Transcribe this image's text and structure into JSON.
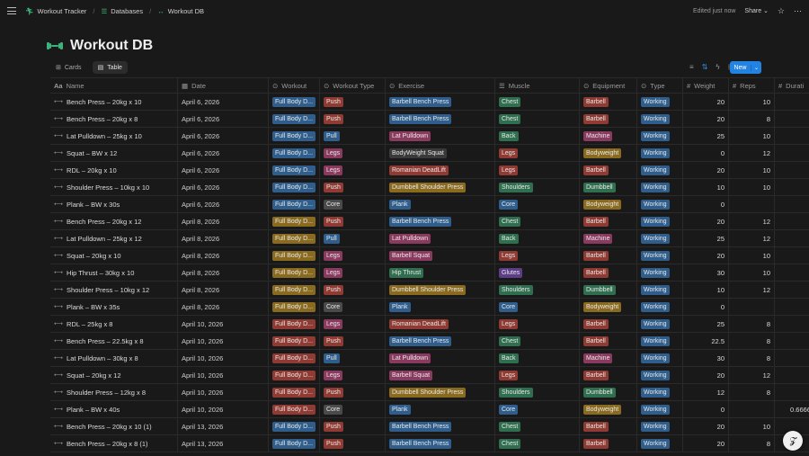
{
  "breadcrumb": [
    "Workout Tracker",
    "Databases",
    "Workout DB"
  ],
  "topbar": {
    "status": "Edited just now",
    "share": "Share"
  },
  "title": "Workout DB",
  "views": [
    "Cards",
    "Table"
  ],
  "new_button": "New",
  "columns": [
    "Name",
    "Date",
    "Workout",
    "Workout Type",
    "Exercise",
    "Muscle",
    "Equipment",
    "Type",
    "Weight",
    "Reps",
    "Durati"
  ],
  "colors": {
    "Full Body D...": "#2f5e8c",
    "Full Body D...b": "#8a6a1f",
    "Full Body D...r": "#8f3a32",
    "Push": "#8f3a32",
    "Pull": "#2f5e8c",
    "Legs": "#8a3a5e",
    "Core": "#4a4a4a",
    "Chest": "#2f6e4e",
    "Back": "#2f6e4e",
    "Shoulders": "#2f6e4e",
    "Glutes": "#5c3d87",
    "Barbell": "#8f3a32",
    "Machine": "#8a3a5e",
    "Bodyweight": "#8a6a1f",
    "Dumbbell": "#2f6e4e",
    "Working": "#2f5e8c"
  },
  "rows": [
    {
      "name": "Bench Press – 20kg x 10",
      "date": "April 6, 2026",
      "workout": "Full Body D...",
      "wcolor": "#2f5e8c",
      "wtype": "Push",
      "exercise": "Barbell Bench Press",
      "ecolor": "#2f5e8c",
      "muscle": "Chest",
      "equipment": "Barbell",
      "type": "Working",
      "weight": "20",
      "reps": "10",
      "dur": ""
    },
    {
      "name": "Bench Press – 20kg x 8",
      "date": "April 6, 2026",
      "workout": "Full Body D...",
      "wcolor": "#2f5e8c",
      "wtype": "Push",
      "exercise": "Barbell Bench Press",
      "ecolor": "#2f5e8c",
      "muscle": "Chest",
      "equipment": "Barbell",
      "type": "Working",
      "weight": "20",
      "reps": "8",
      "dur": ""
    },
    {
      "name": "Lat Pulldown – 25kg x 10",
      "date": "April 6, 2026",
      "workout": "Full Body D...",
      "wcolor": "#2f5e8c",
      "wtype": "Pull",
      "exercise": "Lat Pulldown",
      "ecolor": "#8a3a5e",
      "muscle": "Back",
      "equipment": "Machine",
      "type": "Working",
      "weight": "25",
      "reps": "10",
      "dur": ""
    },
    {
      "name": "Squat – BW x 12",
      "date": "April 6, 2026",
      "workout": "Full Body D...",
      "wcolor": "#2f5e8c",
      "wtype": "Legs",
      "exercise": "BodyWeight Squat",
      "ecolor": "#3a3a3a",
      "muscle": "Legs",
      "equipment": "Bodyweight",
      "type": "Working",
      "weight": "0",
      "reps": "12",
      "dur": ""
    },
    {
      "name": "RDL – 20kg x 10",
      "date": "April 6, 2026",
      "workout": "Full Body D...",
      "wcolor": "#2f5e8c",
      "wtype": "Legs",
      "exercise": "Romanian DeadLift",
      "ecolor": "#8f3a32",
      "muscle": "Legs",
      "equipment": "Barbell",
      "type": "Working",
      "weight": "20",
      "reps": "10",
      "dur": ""
    },
    {
      "name": "Shoulder Press – 10kg x 10",
      "date": "April 6, 2026",
      "workout": "Full Body D...",
      "wcolor": "#2f5e8c",
      "wtype": "Push",
      "exercise": "Dumbbell Shoulder Press",
      "ecolor": "#8a6a1f",
      "muscle": "Shoulders",
      "equipment": "Dumbbell",
      "type": "Working",
      "weight": "10",
      "reps": "10",
      "dur": ""
    },
    {
      "name": "Plank – BW x 30s",
      "date": "April 6, 2026",
      "workout": "Full Body D...",
      "wcolor": "#2f5e8c",
      "wtype": "Core",
      "exercise": "Plank",
      "ecolor": "#2f5e8c",
      "muscle": "Core",
      "equipment": "Bodyweight",
      "type": "Working",
      "weight": "0",
      "reps": "",
      "dur": ""
    },
    {
      "name": "Bench Press – 20kg x 12",
      "date": "April 8, 2026",
      "workout": "Full Body D...",
      "wcolor": "#8a6a1f",
      "wtype": "Push",
      "exercise": "Barbell Bench Press",
      "ecolor": "#2f5e8c",
      "muscle": "Chest",
      "equipment": "Barbell",
      "type": "Working",
      "weight": "20",
      "reps": "12",
      "dur": ""
    },
    {
      "name": "Lat Pulldown – 25kg x 12",
      "date": "April 8, 2026",
      "workout": "Full Body D...",
      "wcolor": "#8a6a1f",
      "wtype": "Pull",
      "exercise": "Lat Pulldown",
      "ecolor": "#8a3a5e",
      "muscle": "Back",
      "equipment": "Machine",
      "type": "Working",
      "weight": "25",
      "reps": "12",
      "dur": ""
    },
    {
      "name": "Squat – 20kg x 10",
      "date": "April 8, 2026",
      "workout": "Full Body D...",
      "wcolor": "#8a6a1f",
      "wtype": "Legs",
      "exercise": "Barbell Squat",
      "ecolor": "#8a3a5e",
      "muscle": "Legs",
      "equipment": "Barbell",
      "type": "Working",
      "weight": "20",
      "reps": "10",
      "dur": ""
    },
    {
      "name": "Hip Thrust – 30kg x 10",
      "date": "April 8, 2026",
      "workout": "Full Body D...",
      "wcolor": "#8a6a1f",
      "wtype": "Legs",
      "exercise": "Hip Thrust",
      "ecolor": "#2f6e4e",
      "muscle": "Glutes",
      "equipment": "Barbell",
      "type": "Working",
      "weight": "30",
      "reps": "10",
      "dur": ""
    },
    {
      "name": "Shoulder Press – 10kg x 12",
      "date": "April 8, 2026",
      "workout": "Full Body D...",
      "wcolor": "#8a6a1f",
      "wtype": "Push",
      "exercise": "Dumbbell Shoulder Press",
      "ecolor": "#8a6a1f",
      "muscle": "Shoulders",
      "equipment": "Dumbbell",
      "type": "Working",
      "weight": "10",
      "reps": "12",
      "dur": ""
    },
    {
      "name": "Plank – BW x 35s",
      "date": "April 8, 2026",
      "workout": "Full Body D...",
      "wcolor": "#8a6a1f",
      "wtype": "Core",
      "exercise": "Plank",
      "ecolor": "#2f5e8c",
      "muscle": "Core",
      "equipment": "Bodyweight",
      "type": "Working",
      "weight": "0",
      "reps": "",
      "dur": ""
    },
    {
      "name": "RDL – 25kg x 8",
      "date": "April 10, 2026",
      "workout": "Full Body D...",
      "wcolor": "#8f3a32",
      "wtype": "Legs",
      "exercise": "Romanian DeadLift",
      "ecolor": "#8f3a32",
      "muscle": "Legs",
      "equipment": "Barbell",
      "type": "Working",
      "weight": "25",
      "reps": "8",
      "dur": ""
    },
    {
      "name": "Bench Press – 22.5kg x 8",
      "date": "April 10, 2026",
      "workout": "Full Body D...",
      "wcolor": "#8f3a32",
      "wtype": "Push",
      "exercise": "Barbell Bench Press",
      "ecolor": "#2f5e8c",
      "muscle": "Chest",
      "equipment": "Barbell",
      "type": "Working",
      "weight": "22.5",
      "reps": "8",
      "dur": ""
    },
    {
      "name": "Lat Pulldown – 30kg x 8",
      "date": "April 10, 2026",
      "workout": "Full Body D...",
      "wcolor": "#8f3a32",
      "wtype": "Pull",
      "exercise": "Lat Pulldown",
      "ecolor": "#8a3a5e",
      "muscle": "Back",
      "equipment": "Machine",
      "type": "Working",
      "weight": "30",
      "reps": "8",
      "dur": ""
    },
    {
      "name": "Squat – 20kg x 12",
      "date": "April 10, 2026",
      "workout": "Full Body D...",
      "wcolor": "#8f3a32",
      "wtype": "Legs",
      "exercise": "Barbell Squat",
      "ecolor": "#8a3a5e",
      "muscle": "Legs",
      "equipment": "Barbell",
      "type": "Working",
      "weight": "20",
      "reps": "12",
      "dur": ""
    },
    {
      "name": "Shoulder Press – 12kg x 8",
      "date": "April 10, 2026",
      "workout": "Full Body D...",
      "wcolor": "#8f3a32",
      "wtype": "Push",
      "exercise": "Dumbbell Shoulder Press",
      "ecolor": "#8a6a1f",
      "muscle": "Shoulders",
      "equipment": "Dumbbell",
      "type": "Working",
      "weight": "12",
      "reps": "8",
      "dur": ""
    },
    {
      "name": "Plank – BW x 40s",
      "date": "April 10, 2026",
      "workout": "Full Body D...",
      "wcolor": "#8f3a32",
      "wtype": "Core",
      "exercise": "Plank",
      "ecolor": "#2f5e8c",
      "muscle": "Core",
      "equipment": "Bodyweight",
      "type": "Working",
      "weight": "0",
      "reps": "",
      "dur": "0.6666"
    },
    {
      "name": "Bench Press – 20kg x 10 (1)",
      "date": "April 13, 2026",
      "workout": "Full Body D...",
      "wcolor": "#2f5e8c",
      "wtype": "Push",
      "exercise": "Barbell Bench Press",
      "ecolor": "#2f5e8c",
      "muscle": "Chest",
      "equipment": "Barbell",
      "type": "Working",
      "weight": "20",
      "reps": "10",
      "dur": ""
    },
    {
      "name": "Bench Press – 20kg x 8 (1)",
      "date": "April 13, 2026",
      "workout": "Full Body D...",
      "wcolor": "#2f5e8c",
      "wtype": "Push",
      "exercise": "Barbell Bench Press",
      "ecolor": "#2f5e8c",
      "muscle": "Chest",
      "equipment": "Barbell",
      "type": "Working",
      "weight": "20",
      "reps": "8",
      "dur": ""
    }
  ]
}
